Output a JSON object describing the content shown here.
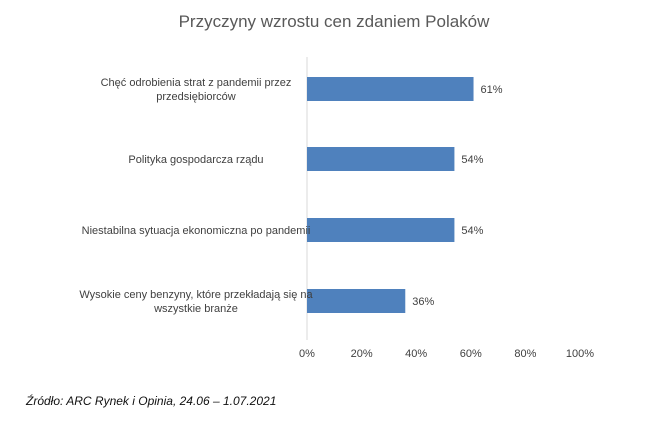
{
  "chart_data": {
    "type": "bar",
    "orientation": "horizontal",
    "title": "Przyczyny wzrostu cen zdaniem Polaków",
    "categories": [
      [
        "Chęć odrobienia strat z pandemii przez",
        "przedsiębiorców"
      ],
      [
        "Polityka gospodarcza rządu"
      ],
      [
        "Niestabilna sytuacja ekonomiczna po pandemii"
      ],
      [
        "Wysokie ceny benzyny, które przekładają się na",
        "wszystkie branże"
      ]
    ],
    "values": [
      61,
      54,
      54,
      36
    ],
    "value_labels": [
      "61%",
      "54%",
      "54%",
      "36%"
    ],
    "xlim": [
      0,
      100
    ],
    "xticks": [
      0,
      20,
      40,
      60,
      80,
      100
    ],
    "xtick_labels": [
      "0%",
      "20%",
      "40%",
      "60%",
      "80%",
      "100%"
    ],
    "bar_color": "#4f81bd",
    "grid": false,
    "legend": "none"
  },
  "source": "Źródło: ARC Rynek i Opinia, 24.06 – 1.07.2021"
}
